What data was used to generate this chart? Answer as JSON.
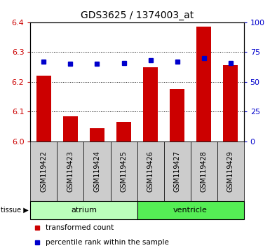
{
  "title": "GDS3625 / 1374003_at",
  "samples": [
    "GSM119422",
    "GSM119423",
    "GSM119424",
    "GSM119425",
    "GSM119426",
    "GSM119427",
    "GSM119428",
    "GSM119429"
  ],
  "red_values": [
    6.22,
    6.085,
    6.045,
    6.065,
    6.25,
    6.175,
    6.385,
    6.255
  ],
  "blue_values": [
    67,
    65,
    65,
    66,
    68,
    67,
    70,
    66
  ],
  "y_min": 6.0,
  "y_max": 6.4,
  "y_ticks": [
    6.0,
    6.1,
    6.2,
    6.3,
    6.4
  ],
  "right_y_ticks": [
    0,
    25,
    50,
    75,
    100
  ],
  "tissue_groups": [
    {
      "label": "atrium",
      "start": 0,
      "end": 4,
      "color": "#bbffbb"
    },
    {
      "label": "ventricle",
      "start": 4,
      "end": 8,
      "color": "#55ee55"
    }
  ],
  "bar_color": "#cc0000",
  "marker_color": "#0000cc",
  "bar_width": 0.55,
  "background_color": "#ffffff",
  "plot_bg": "#ffffff",
  "label_color_red": "#cc0000",
  "label_color_blue": "#0000cc",
  "tick_bg": "#cccccc",
  "sample_fontsize": 7,
  "tissue_fontsize": 8,
  "legend_fontsize": 7.5,
  "title_fontsize": 10
}
